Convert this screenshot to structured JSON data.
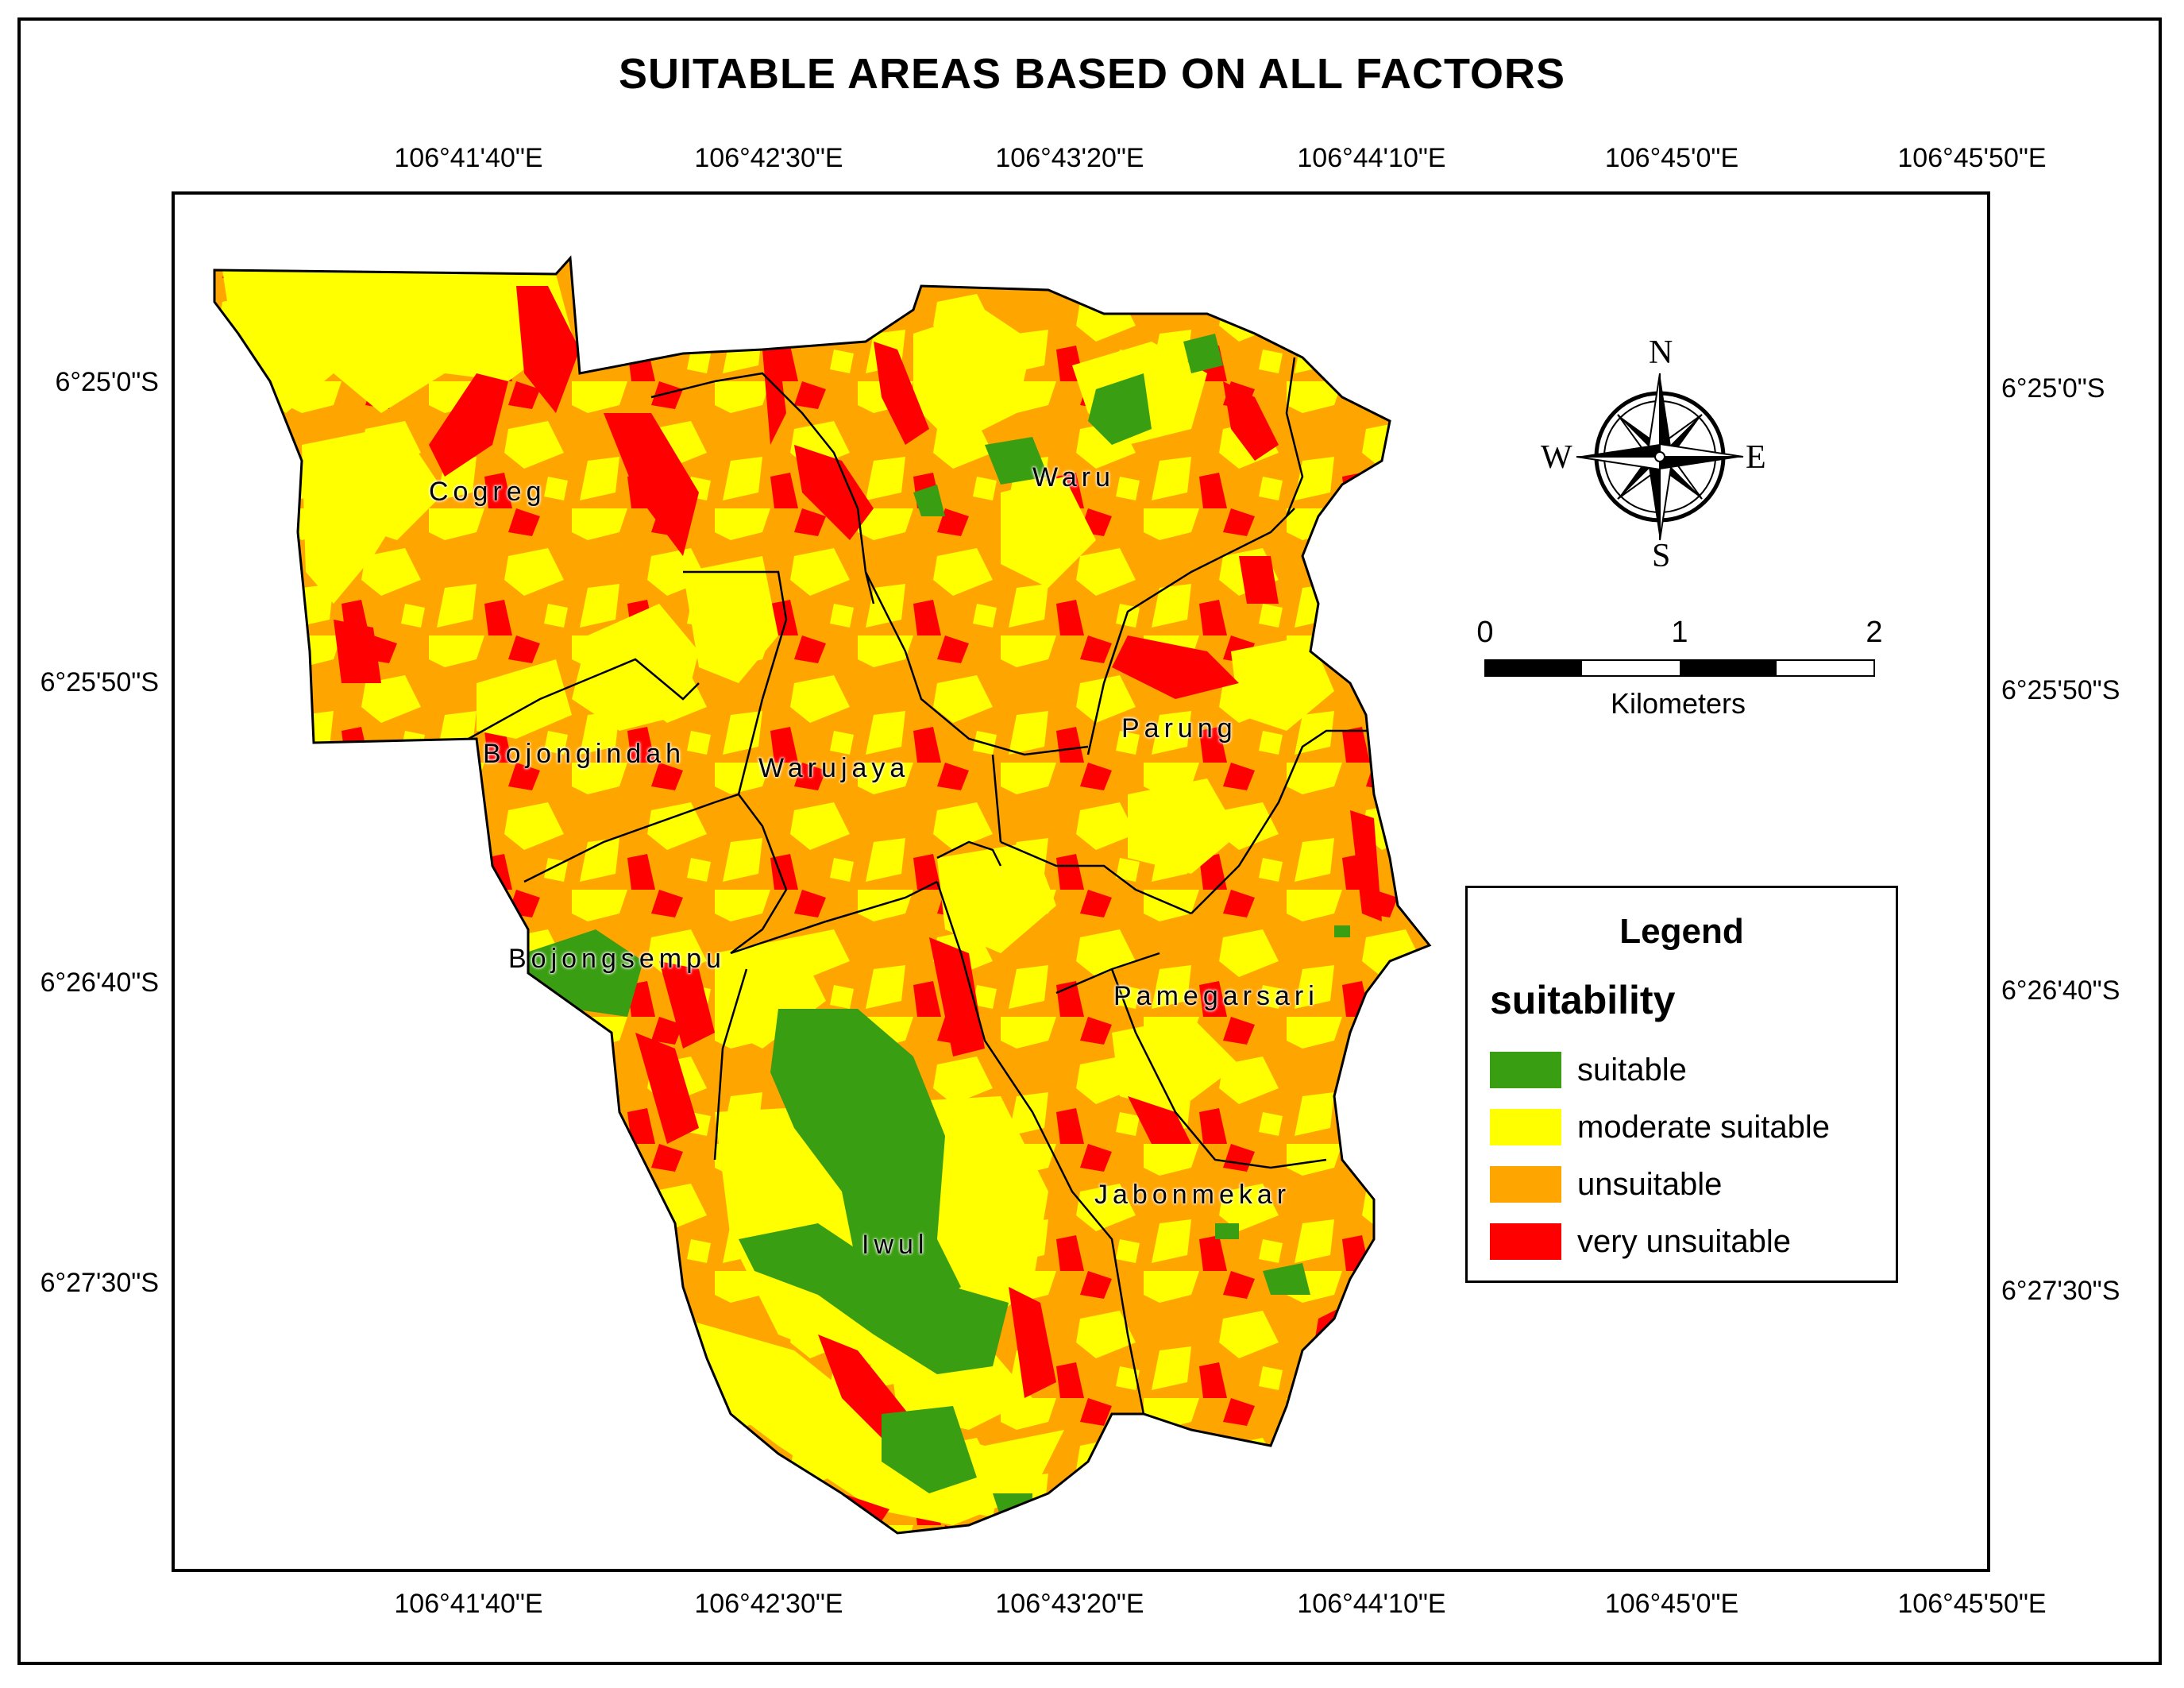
{
  "title": "SUITABLE AREAS BASED ON ALL FACTORS",
  "longitude_ticks": [
    "106°41'40\"E",
    "106°42'30\"E",
    "106°43'20\"E",
    "106°44'10\"E",
    "106°45'0\"E",
    "106°45'50\"E"
  ],
  "latitude_ticks": [
    "6°25'0\"S",
    "6°25'50\"S",
    "6°26'40\"S",
    "6°27'30\"S"
  ],
  "villages": [
    "Cogreg",
    "Waru",
    "Bojongindah",
    "Warujaya",
    "Parung",
    "Bojongsempu",
    "Pamegarsari",
    "Jabonmekar",
    "Iwul"
  ],
  "compass": {
    "north": "N",
    "south": "S",
    "east": "E",
    "west": "W"
  },
  "scale": {
    "ticks": [
      "0",
      "1",
      "2"
    ],
    "unit": "Kilometers"
  },
  "legend": {
    "title": "Legend",
    "subtitle": "suitability",
    "items": [
      {
        "label": "suitable",
        "color": "#3a9e12"
      },
      {
        "label": "moderate suitable",
        "color": "#ffff00"
      },
      {
        "label": "unsuitable",
        "color": "#ffa500"
      },
      {
        "label": "very unsuitable",
        "color": "#ff0000"
      }
    ]
  }
}
